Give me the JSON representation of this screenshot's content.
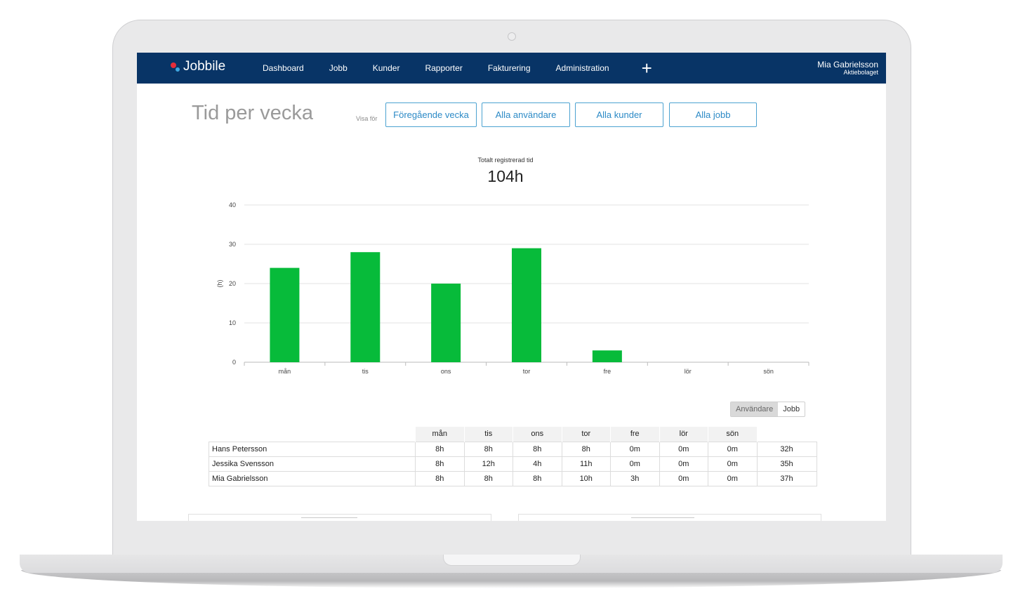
{
  "nav": {
    "brand": "Jobbile",
    "items": [
      {
        "label": "Dashboard"
      },
      {
        "label": "Jobb"
      },
      {
        "label": "Kunder"
      },
      {
        "label": "Rapporter"
      },
      {
        "label": "Fakturering"
      },
      {
        "label": "Administration"
      }
    ],
    "plus": "+",
    "user": {
      "name": "Mia Gabrielsson",
      "org": "Aktiebolaget"
    }
  },
  "page": {
    "title": "Tid per vecka",
    "visa_label": "Visa för",
    "filters": [
      {
        "label": "Föregående vecka"
      },
      {
        "label": "Alla användare"
      },
      {
        "label": "Alla kunder"
      },
      {
        "label": "Alla jobb"
      }
    ],
    "total_label": "Totalt registrerad tid",
    "total_value": "104h"
  },
  "chart_data": {
    "type": "bar",
    "categories": [
      "mån",
      "tis",
      "ons",
      "tor",
      "fre",
      "lör",
      "sön"
    ],
    "values": [
      24,
      28,
      20,
      29,
      3,
      0,
      0
    ],
    "ylabel": "(h)",
    "ylim": [
      0,
      40
    ],
    "yticks": [
      0,
      10,
      20,
      30,
      40
    ],
    "grid": true,
    "bar_color": "#07bb3a"
  },
  "toggle": {
    "options": [
      {
        "label": "Användare",
        "active": true
      },
      {
        "label": "Jobb",
        "active": false
      }
    ]
  },
  "table": {
    "days": [
      "mån",
      "tis",
      "ons",
      "tor",
      "fre",
      "lör",
      "sön"
    ],
    "rows": [
      {
        "name": "Hans Petersson",
        "cells": [
          "8h",
          "8h",
          "8h",
          "8h",
          "0m",
          "0m",
          "0m"
        ],
        "total": "32h"
      },
      {
        "name": "Jessika Svensson",
        "cells": [
          "8h",
          "12h",
          "4h",
          "11h",
          "0m",
          "0m",
          "0m"
        ],
        "total": "35h"
      },
      {
        "name": "Mia Gabrielsson",
        "cells": [
          "8h",
          "8h",
          "8h",
          "10h",
          "3h",
          "0m",
          "0m"
        ],
        "total": "37h"
      }
    ]
  }
}
